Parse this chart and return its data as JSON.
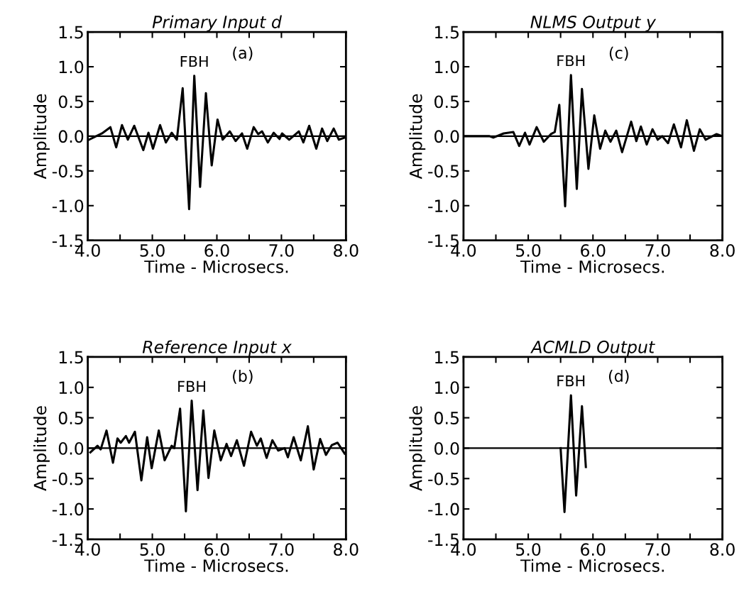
{
  "chart_data": [
    {
      "type": "line",
      "title": "Primary Input d",
      "xlabel": "Time - Microsecs.",
      "ylabel": "Amplitude",
      "x": [
        4.02,
        4.22,
        4.35,
        4.44,
        4.53,
        4.62,
        4.72,
        4.86,
        4.94,
        5.01,
        5.12,
        5.21,
        5.3,
        5.38,
        5.47,
        5.57,
        5.65,
        5.74,
        5.83,
        5.92,
        6.01,
        6.09,
        6.2,
        6.29,
        6.39,
        6.47,
        6.57,
        6.64,
        6.7,
        6.79,
        6.88,
        6.97,
        7.01,
        7.12,
        7.27,
        7.34,
        7.43,
        7.54,
        7.63,
        7.71,
        7.81,
        7.89,
        7.98
      ],
      "series": [
        {
          "color": "#000000",
          "values": [
            -0.05,
            0.04,
            0.13,
            -0.16,
            0.16,
            -0.05,
            0.15,
            -0.2,
            0.05,
            -0.18,
            0.16,
            -0.09,
            0.05,
            -0.05,
            0.69,
            -1.05,
            0.87,
            -0.73,
            0.62,
            -0.42,
            0.24,
            -0.05,
            0.07,
            -0.07,
            0.04,
            -0.18,
            0.13,
            0.03,
            0.07,
            -0.09,
            0.05,
            -0.04,
            0.04,
            -0.05,
            0.07,
            -0.09,
            0.15,
            -0.18,
            0.11,
            -0.07,
            0.11,
            -0.05,
            -0.02
          ]
        }
      ],
      "xlim": [
        4.0,
        8.0
      ],
      "ylim": [
        -1.5,
        1.5
      ],
      "xticks": [
        {
          "value": 4.0,
          "label": "4.0"
        },
        {
          "value": 4.5,
          "label": null
        },
        {
          "value": 5.0,
          "label": "5.0"
        },
        {
          "value": 5.5,
          "label": null
        },
        {
          "value": 6.0,
          "label": "6.0"
        },
        {
          "value": 6.5,
          "label": null
        },
        {
          "value": 7.0,
          "label": "7.0"
        },
        {
          "value": 7.5,
          "label": null
        },
        {
          "value": 8.0,
          "label": "8.0"
        }
      ],
      "yticks": [
        {
          "value": -1.5,
          "label": "-1.5"
        },
        {
          "value": -1.0,
          "label": "-1.0"
        },
        {
          "value": -0.5,
          "label": "-0.5"
        },
        {
          "value": 0.0,
          "label": "0.0"
        },
        {
          "value": 0.5,
          "label": "0.5"
        },
        {
          "value": 1.0,
          "label": "1.0"
        },
        {
          "value": 1.5,
          "label": "1.5"
        }
      ],
      "ref_lines": [
        {
          "axis": "y",
          "value": 0.0,
          "color": "#000000"
        }
      ],
      "annotations": [
        {
          "text": "FBH",
          "x": 5.65,
          "y": 0.87
        },
        "(a)"
      ]
    },
    {
      "type": "line",
      "title": "NLMS Output y",
      "xlabel": "Time - Microsecs.",
      "ylabel": "Amplitude",
      "x": [
        4.0,
        4.4,
        4.46,
        4.62,
        4.77,
        4.86,
        4.95,
        5.02,
        5.13,
        5.24,
        5.35,
        5.41,
        5.48,
        5.57,
        5.66,
        5.75,
        5.83,
        5.93,
        6.02,
        6.11,
        6.19,
        6.27,
        6.36,
        6.45,
        6.59,
        6.67,
        6.74,
        6.83,
        6.92,
        7.0,
        7.07,
        7.16,
        7.25,
        7.36,
        7.45,
        7.56,
        7.65,
        7.74,
        7.91,
        8.0
      ],
      "series": [
        {
          "color": "#000000",
          "values": [
            0,
            0,
            -0.02,
            0.04,
            0.06,
            -0.14,
            0.05,
            -0.12,
            0.13,
            -0.08,
            0.03,
            0.06,
            0.45,
            -1.01,
            0.88,
            -0.76,
            0.68,
            -0.47,
            0.3,
            -0.18,
            0.08,
            -0.08,
            0.08,
            -0.23,
            0.21,
            -0.07,
            0.14,
            -0.12,
            0.1,
            -0.05,
            0.0,
            -0.1,
            0.17,
            -0.16,
            0.23,
            -0.21,
            0.1,
            -0.05,
            0.03,
            0
          ]
        }
      ],
      "xlim": [
        4.0,
        8.0
      ],
      "ylim": [
        -1.5,
        1.5
      ],
      "xticks": [
        {
          "value": 4.0,
          "label": "4.0"
        },
        {
          "value": 4.5,
          "label": null
        },
        {
          "value": 5.0,
          "label": "5.0"
        },
        {
          "value": 5.5,
          "label": null
        },
        {
          "value": 6.0,
          "label": "6.0"
        },
        {
          "value": 6.5,
          "label": null
        },
        {
          "value": 7.0,
          "label": "7.0"
        },
        {
          "value": 7.5,
          "label": null
        },
        {
          "value": 8.0,
          "label": "8.0"
        }
      ],
      "yticks": [
        {
          "value": -1.5,
          "label": "-1.5"
        },
        {
          "value": -1.0,
          "label": "-1.0"
        },
        {
          "value": -0.5,
          "label": "-0.5"
        },
        {
          "value": 0.0,
          "label": "0.0"
        },
        {
          "value": 0.5,
          "label": "0.5"
        },
        {
          "value": 1.0,
          "label": "1.0"
        },
        {
          "value": 1.5,
          "label": "1.5"
        }
      ],
      "ref_lines": [
        {
          "axis": "y",
          "value": 0.0,
          "color": "#000000"
        }
      ],
      "annotations": [
        {
          "text": "FBH",
          "x": 5.66,
          "y": 0.88
        },
        "(c)"
      ]
    },
    {
      "type": "line",
      "title": "Reference Input x",
      "xlabel": "Time - Microsecs.",
      "ylabel": "Amplitude",
      "x": [
        4.04,
        4.15,
        4.2,
        4.29,
        4.39,
        4.46,
        4.51,
        4.59,
        4.64,
        4.73,
        4.83,
        4.92,
        4.99,
        5.1,
        5.19,
        5.3,
        5.34,
        5.43,
        5.52,
        5.61,
        5.7,
        5.79,
        5.87,
        5.96,
        6.06,
        6.15,
        6.22,
        6.31,
        6.42,
        6.53,
        6.62,
        6.68,
        6.77,
        6.86,
        6.95,
        7.05,
        7.1,
        7.19,
        7.3,
        7.41,
        7.5,
        7.6,
        7.69,
        7.78,
        7.87,
        7.98
      ],
      "series": [
        {
          "color": "#000000",
          "values": [
            -0.07,
            0.04,
            -0.02,
            0.29,
            -0.24,
            0.16,
            0.09,
            0.2,
            0.09,
            0.27,
            -0.53,
            0.18,
            -0.33,
            0.29,
            -0.2,
            0.04,
            0.0,
            0.65,
            -1.04,
            0.78,
            -0.69,
            0.62,
            -0.49,
            0.29,
            -0.2,
            0.07,
            -0.13,
            0.13,
            -0.29,
            0.27,
            0.04,
            0.16,
            -0.16,
            0.13,
            -0.04,
            0.0,
            -0.15,
            0.18,
            -0.2,
            0.36,
            -0.35,
            0.15,
            -0.11,
            0.05,
            0.09,
            -0.09
          ]
        }
      ],
      "xlim": [
        4.0,
        8.0
      ],
      "ylim": [
        -1.5,
        1.5
      ],
      "xticks": [
        {
          "value": 4.0,
          "label": "4.0"
        },
        {
          "value": 4.5,
          "label": null
        },
        {
          "value": 5.0,
          "label": "5.0"
        },
        {
          "value": 5.5,
          "label": null
        },
        {
          "value": 6.0,
          "label": "6.0"
        },
        {
          "value": 6.5,
          "label": null
        },
        {
          "value": 7.0,
          "label": "7.0"
        },
        {
          "value": 7.5,
          "label": null
        },
        {
          "value": 8.0,
          "label": "8.0"
        }
      ],
      "yticks": [
        {
          "value": -1.5,
          "label": "-1.5"
        },
        {
          "value": -1.0,
          "label": "-1.0"
        },
        {
          "value": -0.5,
          "label": "-0.5"
        },
        {
          "value": 0.0,
          "label": "0.0"
        },
        {
          "value": 0.5,
          "label": "0.5"
        },
        {
          "value": 1.0,
          "label": "1.0"
        },
        {
          "value": 1.5,
          "label": "1.5"
        }
      ],
      "ref_lines": [
        {
          "axis": "y",
          "value": 0.0,
          "color": "#000000"
        }
      ],
      "annotations": [
        {
          "text": "FBH",
          "x": 5.61,
          "y": 0.78
        },
        "(b)"
      ]
    },
    {
      "type": "line",
      "title": "ACMLD Output",
      "xlabel": "Time - Microsecs.",
      "ylabel": "Amplitude",
      "x": [
        5.5,
        5.56,
        5.66,
        5.74,
        5.83,
        5.89
      ],
      "series": [
        {
          "color": "#000000",
          "values": [
            0.0,
            -1.05,
            0.87,
            -0.78,
            0.69,
            -0.31
          ]
        }
      ],
      "xlim": [
        4.0,
        8.0
      ],
      "ylim": [
        -1.5,
        1.5
      ],
      "xticks": [
        {
          "value": 4.0,
          "label": "4.0"
        },
        {
          "value": 4.5,
          "label": null
        },
        {
          "value": 5.0,
          "label": "5.0"
        },
        {
          "value": 5.5,
          "label": null
        },
        {
          "value": 6.0,
          "label": "6.0"
        },
        {
          "value": 6.5,
          "label": null
        },
        {
          "value": 7.0,
          "label": "7.0"
        },
        {
          "value": 7.5,
          "label": null
        },
        {
          "value": 8.0,
          "label": "8.0"
        }
      ],
      "yticks": [
        {
          "value": -1.5,
          "label": "-1.5"
        },
        {
          "value": -1.0,
          "label": "-1.0"
        },
        {
          "value": -0.5,
          "label": "-0.5"
        },
        {
          "value": 0.0,
          "label": "0.0"
        },
        {
          "value": 0.5,
          "label": "0.5"
        },
        {
          "value": 1.0,
          "label": "1.0"
        },
        {
          "value": 1.5,
          "label": "1.5"
        }
      ],
      "ref_lines": [
        {
          "axis": "y",
          "value": 0.0,
          "color": "#000000"
        }
      ],
      "annotations": [
        {
          "text": "FBH",
          "x": 5.66,
          "y": 0.87
        },
        "(d)"
      ]
    }
  ]
}
